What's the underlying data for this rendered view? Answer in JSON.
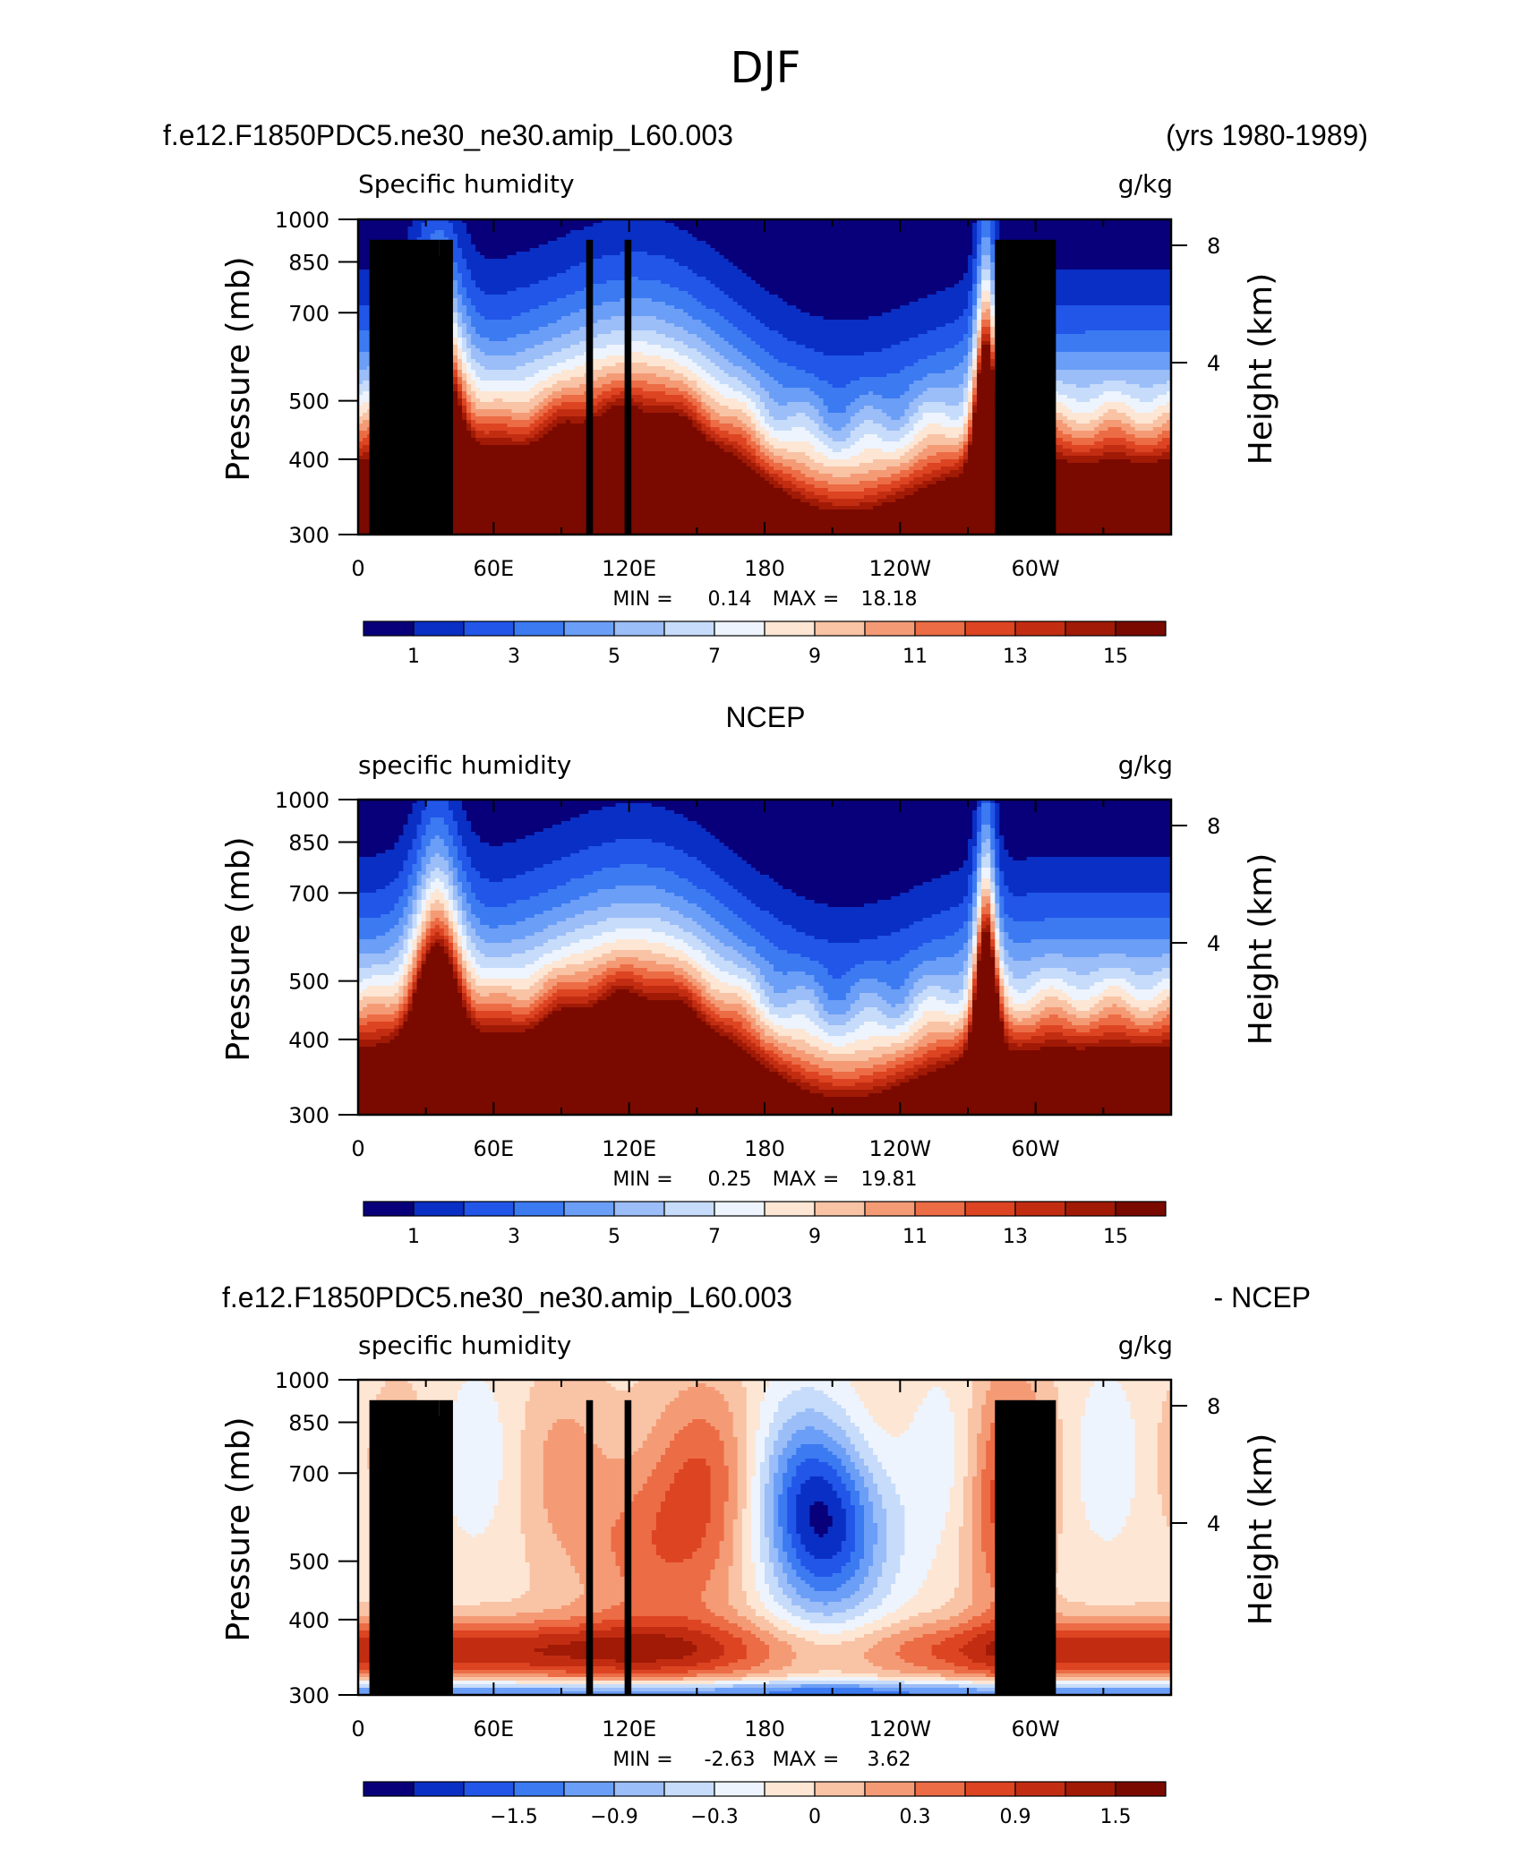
{
  "figure": {
    "title": "DJF",
    "header_left": "f.e12.F1850PDC5.ne30_ne30.amip_L60.003",
    "header_right": "(yrs 1980-1989)"
  },
  "colors": {
    "contour_palette": [
      "#08007a",
      "#0a2fc4",
      "#2156e8",
      "#3c7af2",
      "#6b9ef6",
      "#9bbdf8",
      "#c6dcfa",
      "#eef4fd",
      "#fde6d4",
      "#f9c3a5",
      "#f49b76",
      "#ec6c45",
      "#dd4422",
      "#c22d12",
      "#a01a06",
      "#7a0a00"
    ],
    "topography": "#000000"
  },
  "chart_data": [
    {
      "type": "heatmap",
      "panel_title": "",
      "left_label": "Specific humidity",
      "right_label": "g/kg",
      "ylabel": "Pressure (mb)",
      "ylabel_right": "Height (km)",
      "x_ticks": [
        "0",
        "60E",
        "120E",
        "180",
        "120W",
        "60W"
      ],
      "x_tick_values": [
        0,
        60,
        120,
        180,
        240,
        300
      ],
      "xlim": [
        0,
        360
      ],
      "y_ticks": [
        "300",
        "400",
        "500",
        "700",
        "850",
        "1000"
      ],
      "y_tick_values": [
        300,
        400,
        500,
        700,
        850,
        1000
      ],
      "ylim": [
        1000,
        300
      ],
      "y_right_ticks": [
        "8",
        "4"
      ],
      "min_label": "MIN =",
      "min_value": "0.14",
      "max_label": "MAX =",
      "max_value": "18.18",
      "colorbar_labels": [
        "1",
        "3",
        "5",
        "7",
        "9",
        "11",
        "13",
        "15"
      ],
      "levels": [
        1,
        2,
        3,
        4,
        5,
        6,
        7,
        8,
        9,
        10,
        11,
        12,
        13,
        14,
        15
      ],
      "topography": true
    },
    {
      "type": "heatmap",
      "panel_title": "NCEP",
      "left_label": "specific humidity",
      "right_label": "g/kg",
      "ylabel": "Pressure (mb)",
      "ylabel_right": "Height (km)",
      "x_ticks": [
        "0",
        "60E",
        "120E",
        "180",
        "120W",
        "60W"
      ],
      "x_tick_values": [
        0,
        60,
        120,
        180,
        240,
        300
      ],
      "xlim": [
        0,
        360
      ],
      "y_ticks": [
        "300",
        "400",
        "500",
        "700",
        "850",
        "1000"
      ],
      "y_tick_values": [
        300,
        400,
        500,
        700,
        850,
        1000
      ],
      "ylim": [
        1000,
        300
      ],
      "y_right_ticks": [
        "8",
        "4"
      ],
      "min_label": "MIN =",
      "min_value": "0.25",
      "max_label": "MAX =",
      "max_value": "19.81",
      "colorbar_labels": [
        "1",
        "3",
        "5",
        "7",
        "9",
        "11",
        "13",
        "15"
      ],
      "levels": [
        1,
        2,
        3,
        4,
        5,
        6,
        7,
        8,
        9,
        10,
        11,
        12,
        13,
        14,
        15
      ],
      "topography": false
    },
    {
      "type": "heatmap",
      "panel_title": "f.e12.F1850PDC5.ne30_ne30.amip_L60.003",
      "panel_title_right": "- NCEP",
      "left_label": "specific humidity",
      "right_label": "g/kg",
      "ylabel": "Pressure (mb)",
      "ylabel_right": "Height (km)",
      "x_ticks": [
        "0",
        "60E",
        "120E",
        "180",
        "120W",
        "60W"
      ],
      "x_tick_values": [
        0,
        60,
        120,
        180,
        240,
        300
      ],
      "xlim": [
        0,
        360
      ],
      "y_ticks": [
        "300",
        "400",
        "500",
        "700",
        "850",
        "1000"
      ],
      "y_tick_values": [
        300,
        400,
        500,
        700,
        850,
        1000
      ],
      "ylim": [
        1000,
        300
      ],
      "y_right_ticks": [
        "8",
        "4"
      ],
      "min_label": "MIN =",
      "min_value": "-2.63",
      "max_label": "MAX =",
      "max_value": "3.62",
      "colorbar_labels": [
        "−1.5",
        "−0.9",
        "−0.3",
        "0",
        "0.3",
        "0.9",
        "1.5"
      ],
      "levels": [
        -2.1,
        -1.8,
        -1.5,
        -1.2,
        -0.9,
        -0.6,
        -0.3,
        0,
        0.3,
        0.6,
        0.9,
        1.2,
        1.5,
        1.8,
        2.1
      ],
      "topography": true
    }
  ]
}
